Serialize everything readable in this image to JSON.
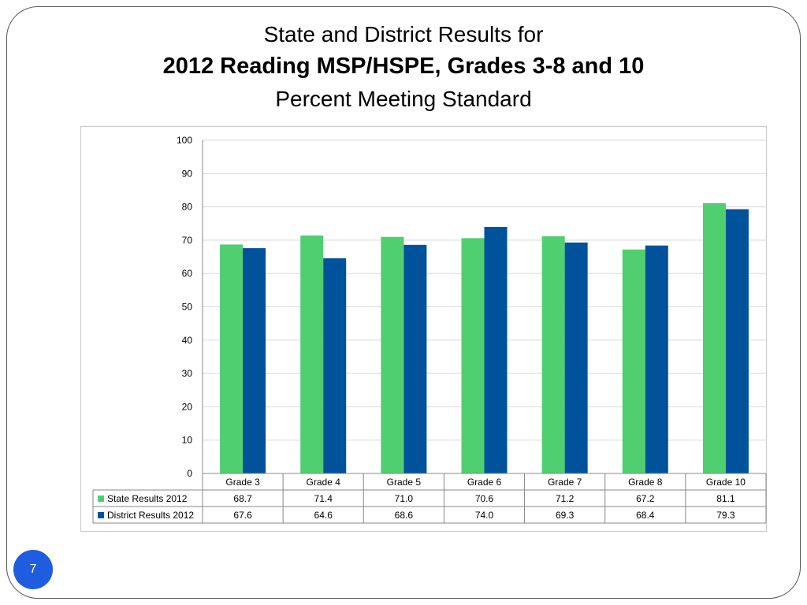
{
  "slide": {
    "title_line1": "State and District Results for",
    "title_line2": "2012 Reading MSP/HSPE, Grades 3-8 and 10",
    "title_line3": "Percent Meeting Standard",
    "page_number": "7"
  },
  "colors": {
    "state": "#4fcf70",
    "district": "#00529b",
    "grid": "#d9d9d9",
    "page_badge": "#1f5de0"
  },
  "chart_data": {
    "type": "bar",
    "title": "2012 Reading MSP/HSPE, Grades 3-8 and 10",
    "categories": [
      "Grade 3",
      "Grade 4",
      "Grade 5",
      "Grade 6",
      "Grade 7",
      "Grade 8",
      "Grade 10"
    ],
    "series": [
      {
        "name": "State Results 2012",
        "values": [
          68.7,
          71.4,
          71.0,
          70.6,
          71.2,
          67.2,
          81.1
        ],
        "labels": [
          "68.7",
          "71.4",
          "71.0",
          "70.6",
          "71.2",
          "67.2",
          "81.1"
        ]
      },
      {
        "name": "District Results 2012",
        "values": [
          67.6,
          64.6,
          68.6,
          74.0,
          69.3,
          68.4,
          79.3
        ],
        "labels": [
          "67.6",
          "64.6",
          "68.6",
          "74.0",
          "69.3",
          "68.4",
          "79.3"
        ]
      }
    ],
    "ylim": [
      0,
      100
    ],
    "yticks": [
      "0",
      "10",
      "20",
      "30",
      "40",
      "50",
      "60",
      "70",
      "80",
      "90",
      "100"
    ],
    "grid": true,
    "legend": "data-table"
  }
}
